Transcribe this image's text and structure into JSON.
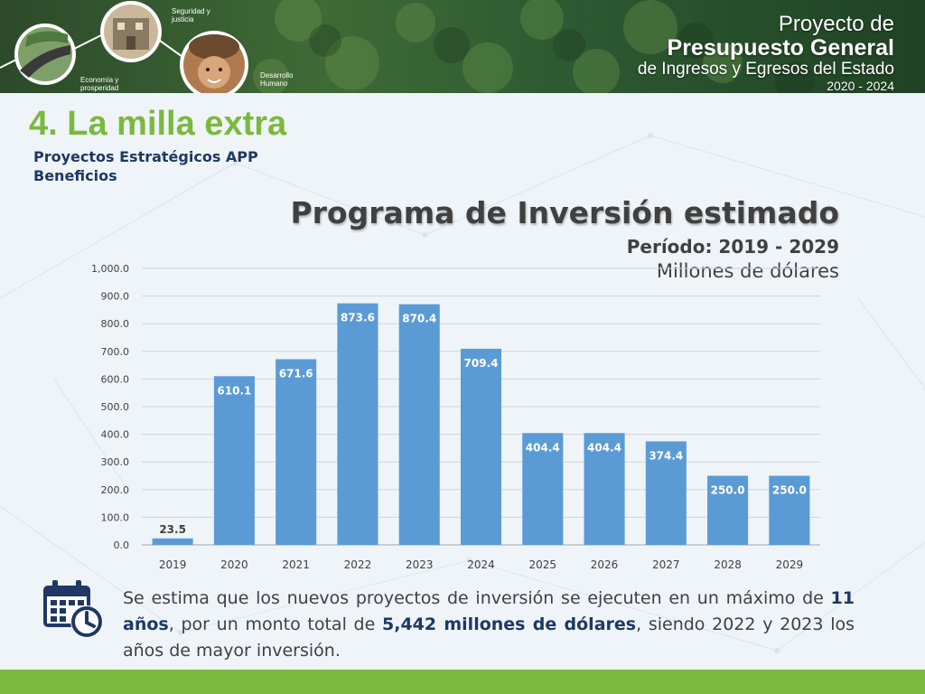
{
  "banner": {
    "circle_labels": [
      "Economía y prosperidad",
      "Seguridad y justicia",
      "Desarrollo Humano"
    ],
    "title_line1": "Proyecto de",
    "title_line2": "Presupuesto General",
    "title_line3": "de Ingresos y Egresos del Estado",
    "title_line4": "2020 - 2024"
  },
  "page": {
    "section_title": "4. La milla extra",
    "subtitle_1": "Proyectos Estratégicos APP",
    "subtitle_2": "Beneficios"
  },
  "colors": {
    "accent_green": "#7cb83e",
    "bar_blue": "#5b9bd5",
    "dark_navy": "#1f3864",
    "text_gray": "#404040"
  },
  "chart_data": {
    "type": "bar",
    "title": "Programa de Inversión estimado",
    "period": "Período: 2019 - 2029",
    "unit": "Millones de dólares",
    "categories": [
      "2019",
      "2020",
      "2021",
      "2022",
      "2023",
      "2024",
      "2025",
      "2026",
      "2027",
      "2028",
      "2029"
    ],
    "values": [
      23.5,
      610.1,
      671.6,
      873.6,
      870.4,
      709.4,
      404.4,
      404.4,
      374.4,
      250.0,
      250.0
    ],
    "value_labels": [
      "23.5",
      "610.1",
      "671.6",
      "873.6",
      "870.4",
      "709.4",
      "404.4",
      "404.4",
      "374.4",
      "250.0",
      "250.0"
    ],
    "ylim": [
      0,
      1000
    ],
    "yticks": [
      "0.0",
      "100.0",
      "200.0",
      "300.0",
      "400.0",
      "500.0",
      "600.0",
      "700.0",
      "800.0",
      "900.0",
      "1,000.0"
    ],
    "grid": true,
    "legend": "none"
  },
  "note": {
    "icon": "calendar-clock-icon",
    "part1": "Se estima que los nuevos proyectos de inversión se ejecuten en un máximo de ",
    "bold1": "11 años",
    "part2": ", por un monto total de ",
    "bold2": "5,442 millones de dólares",
    "part3": ", siendo 2022 y 2023 los años de mayor inversión."
  }
}
